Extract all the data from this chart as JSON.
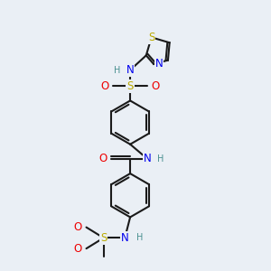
{
  "bg_color": "#eaeff5",
  "bond_color": "#1a1a1a",
  "bond_width": 1.5,
  "atom_colors": {
    "C": "#1a1a1a",
    "N": "#0000ee",
    "O": "#ee0000",
    "S": "#bbaa00",
    "H": "#4a9090"
  },
  "font_size": 7.5,
  "fig_size": [
    3.0,
    3.0
  ],
  "dpi": 100
}
